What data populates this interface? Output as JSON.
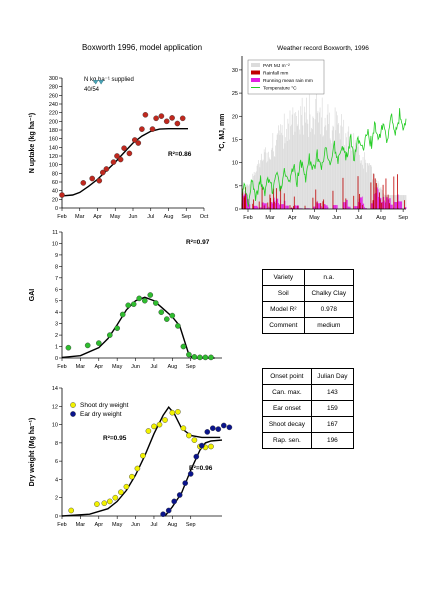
{
  "title": "Boxworth 1996, model application",
  "nuptake": {
    "ylabel": "N uptake (kg ha⁻¹)",
    "supplied_label": "N kg ha⁻¹ supplied",
    "supplied_value": "40/54",
    "r2": "R²=0.86",
    "xticks": [
      "Feb",
      "Mar",
      "Apr",
      "May",
      "Jun",
      "Jul",
      "Aug",
      "Sep",
      "Oct"
    ],
    "yticks": [
      0,
      20,
      40,
      60,
      80,
      100,
      120,
      140,
      160,
      180,
      200,
      220,
      240,
      260,
      280,
      300
    ],
    "ylim": [
      0,
      300
    ],
    "observed": [
      [
        0,
        30
      ],
      [
        1.2,
        58
      ],
      [
        1.7,
        68
      ],
      [
        2.1,
        63
      ],
      [
        2.3,
        82
      ],
      [
        2.5,
        90
      ],
      [
        2.9,
        106
      ],
      [
        3.1,
        120
      ],
      [
        3.3,
        112
      ],
      [
        3.5,
        138
      ],
      [
        3.8,
        126
      ],
      [
        4.1,
        157
      ],
      [
        4.3,
        150
      ],
      [
        4.5,
        182
      ],
      [
        4.7,
        215
      ],
      [
        5.1,
        182
      ],
      [
        5.3,
        207
      ],
      [
        5.6,
        212
      ],
      [
        5.9,
        200
      ],
      [
        6.2,
        208
      ],
      [
        6.5,
        195
      ],
      [
        6.8,
        207
      ]
    ],
    "model": [
      [
        0,
        28
      ],
      [
        0.6,
        30
      ],
      [
        1.0,
        36
      ],
      [
        1.5,
        50
      ],
      [
        2.0,
        66
      ],
      [
        2.5,
        86
      ],
      [
        3.0,
        106
      ],
      [
        3.5,
        128
      ],
      [
        4.0,
        150
      ],
      [
        4.5,
        166
      ],
      [
        5.0,
        177
      ],
      [
        5.5,
        182
      ],
      [
        6.0,
        183
      ],
      [
        7.1,
        183
      ]
    ],
    "markers_x": [
      1.9,
      2.2
    ]
  },
  "gai": {
    "ylabel": "GAI",
    "r2": "R²=0.97",
    "xticks": [
      "Feb",
      "Mar",
      "Apr",
      "May",
      "Jun",
      "Jul",
      "Aug",
      "Sep"
    ],
    "yticks": [
      0,
      1,
      2,
      3,
      4,
      5,
      6,
      7,
      8,
      9,
      10,
      11
    ],
    "ylim": [
      0,
      11
    ],
    "observed": [
      [
        0.35,
        0.9
      ],
      [
        1.4,
        1.1
      ],
      [
        2.0,
        1.3
      ],
      [
        2.6,
        2.0
      ],
      [
        3.0,
        2.6
      ],
      [
        3.3,
        3.8
      ],
      [
        3.6,
        4.6
      ],
      [
        3.9,
        4.7
      ],
      [
        4.2,
        5.2
      ],
      [
        4.5,
        5.0
      ],
      [
        4.8,
        5.5
      ],
      [
        5.1,
        4.8
      ],
      [
        5.4,
        4.0
      ],
      [
        5.7,
        3.4
      ],
      [
        6.0,
        3.7
      ],
      [
        6.3,
        2.8
      ],
      [
        6.6,
        1.0
      ],
      [
        6.9,
        0.3
      ],
      [
        7.2,
        0.1
      ],
      [
        7.5,
        0.05
      ],
      [
        7.8,
        0.05
      ],
      [
        8.1,
        0.05
      ]
    ],
    "model": [
      [
        0,
        0.05
      ],
      [
        1.0,
        0.2
      ],
      [
        2.0,
        0.9
      ],
      [
        2.5,
        1.7
      ],
      [
        3.0,
        2.9
      ],
      [
        3.5,
        4.2
      ],
      [
        4.0,
        5.0
      ],
      [
        4.5,
        5.3
      ],
      [
        5.0,
        5.0
      ],
      [
        5.5,
        4.3
      ],
      [
        6.0,
        3.6
      ],
      [
        6.4,
        2.8
      ],
      [
        6.7,
        1.3
      ],
      [
        6.9,
        0.3
      ],
      [
        7.1,
        0.0
      ],
      [
        8.3,
        0.0
      ]
    ]
  },
  "dw": {
    "ylabel": "Dry weight (Mg ha⁻¹)",
    "legend": [
      "Shoot dry weight",
      "Ear dry weight"
    ],
    "r2_shoot": "R²=0.95",
    "r2_ear": "R²=0.96",
    "xticks": [
      "Feb",
      "Mar",
      "Apr",
      "May",
      "Jun",
      "Jul",
      "Aug",
      "Sep"
    ],
    "yticks": [
      0,
      2,
      4,
      6,
      8,
      10,
      12,
      14
    ],
    "ylim": [
      0,
      14
    ],
    "shoot_observed": [
      [
        0.5,
        0.6
      ],
      [
        1.9,
        1.3
      ],
      [
        2.3,
        1.4
      ],
      [
        2.6,
        1.6
      ],
      [
        2.9,
        2.0
      ],
      [
        3.2,
        2.6
      ],
      [
        3.5,
        3.2
      ],
      [
        3.8,
        4.3
      ],
      [
        4.1,
        5.2
      ],
      [
        4.4,
        6.6
      ],
      [
        4.7,
        9.3
      ],
      [
        5.0,
        9.8
      ],
      [
        5.3,
        10.0
      ],
      [
        5.6,
        10.5
      ],
      [
        6.0,
        11.3
      ],
      [
        6.3,
        11.4
      ],
      [
        6.6,
        9.6
      ],
      [
        6.9,
        8.8
      ],
      [
        7.2,
        8.3
      ],
      [
        7.5,
        7.6
      ],
      [
        7.8,
        7.5
      ],
      [
        8.1,
        7.6
      ]
    ],
    "shoot_model": [
      [
        0,
        0
      ],
      [
        1.5,
        0.2
      ],
      [
        2.5,
        0.8
      ],
      [
        3.0,
        1.6
      ],
      [
        3.5,
        2.8
      ],
      [
        4.0,
        4.5
      ],
      [
        4.5,
        6.6
      ],
      [
        5.0,
        9.0
      ],
      [
        5.5,
        11.0
      ],
      [
        5.8,
        11.9
      ],
      [
        6.1,
        11.2
      ],
      [
        6.5,
        9.6
      ],
      [
        7.0,
        8.8
      ],
      [
        7.6,
        8.6
      ],
      [
        8.6,
        8.6
      ]
    ],
    "ear_observed": [
      [
        5.5,
        0.2
      ],
      [
        5.8,
        0.6
      ],
      [
        6.1,
        1.6
      ],
      [
        6.4,
        2.3
      ],
      [
        6.7,
        3.6
      ],
      [
        7.0,
        4.6
      ],
      [
        7.3,
        6.5
      ],
      [
        7.6,
        7.7
      ],
      [
        7.9,
        9.2
      ],
      [
        8.2,
        9.6
      ],
      [
        8.5,
        9.5
      ],
      [
        8.8,
        9.9
      ],
      [
        9.1,
        9.7
      ]
    ],
    "ear_model": [
      [
        5.6,
        0
      ],
      [
        6.0,
        1.0
      ],
      [
        6.5,
        2.5
      ],
      [
        7.0,
        5.0
      ],
      [
        7.5,
        7.2
      ],
      [
        7.8,
        8.0
      ],
      [
        8.1,
        8.2
      ],
      [
        8.7,
        8.3
      ]
    ]
  },
  "weather": {
    "title": "Weather record Boxworth, 1996",
    "ylabel": "°C, MJ, mm",
    "legend": [
      "PAR MJ m⁻²",
      "Rainfall mm",
      "Running mean rain mm",
      "Temperature °C"
    ],
    "xticks": [
      "Feb",
      "Mar",
      "Apr",
      "May",
      "Jun",
      "Jul",
      "Aug",
      "Sep"
    ],
    "yticks": [
      0,
      5,
      10,
      15,
      20,
      25,
      30
    ],
    "ylim": [
      0,
      33
    ]
  },
  "colors": {
    "nuptake_dot": "#c0281e",
    "gai_dot": "#2fbd2f",
    "shoot_dot": "#f2f200",
    "ear_dot": "#0a148c",
    "par": "#dcdcdc",
    "rain": "#c00000",
    "run_rain": "#e020e0",
    "temp": "#22cc22",
    "marker": "#4aa6b8"
  },
  "props_table": [
    {
      "key": "Variety",
      "value": "n.a."
    },
    {
      "key": "Soil",
      "value": "Chalky Clay"
    },
    {
      "key": "Model R²",
      "value": "0.978"
    },
    {
      "key": "Comment",
      "value": "medium"
    }
  ],
  "onset_table": {
    "header": [
      "Onset point",
      "Julian Day"
    ],
    "rows": [
      {
        "key": "Can. max.",
        "value": "143"
      },
      {
        "key": "Ear onset",
        "value": "159"
      },
      {
        "key": "Shoot decay",
        "value": "167"
      },
      {
        "key": "Rap. sen.",
        "value": "196"
      }
    ]
  }
}
